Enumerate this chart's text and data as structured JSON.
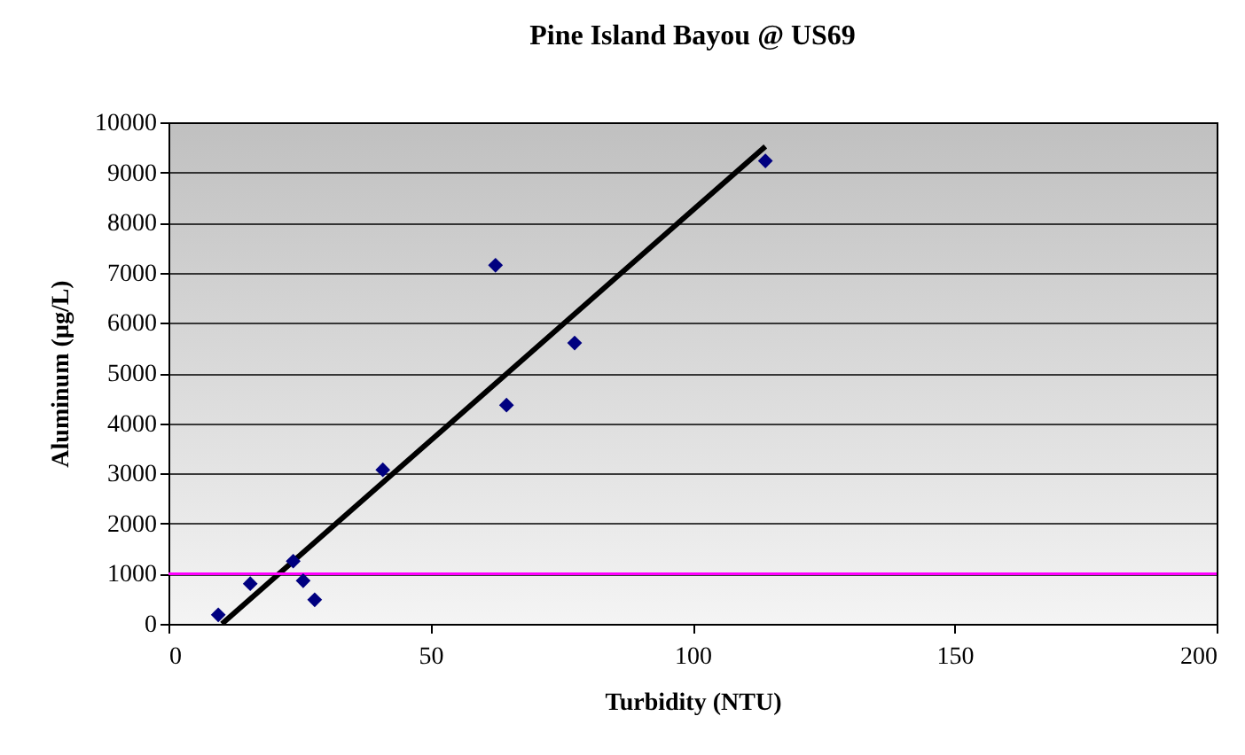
{
  "chart_data": {
    "type": "scatter",
    "title": "Pine Island Bayou @ US69",
    "xlabel": "Turbidity (NTU)",
    "ylabel": "Aluminum (µg/L)",
    "xlim": [
      0,
      200
    ],
    "xticks": [
      0,
      50,
      100,
      150,
      200
    ],
    "ylim": [
      0,
      10000
    ],
    "yticks": [
      0,
      1000,
      2000,
      3000,
      4000,
      5000,
      6000,
      7000,
      8000,
      9000,
      10000
    ],
    "grid": "y",
    "series": [
      {
        "color": "#000080",
        "marker": "diamond",
        "x": [
          9.5,
          15.6,
          23.8,
          25.7,
          27.9,
          40.9,
          62.4,
          64.5,
          77.5,
          113.9
        ],
        "values": [
          180,
          800,
          1250,
          860,
          480,
          3070,
          7150,
          4360,
          5600,
          9230
        ]
      },
      {
        "type": "line",
        "color": "#000000",
        "x": [
          10.2,
          113.9
        ],
        "values": [
          0,
          9520
        ]
      }
    ],
    "ref_lines": [
      {
        "axis": "y",
        "value": 1000,
        "color": "#ff00ff"
      }
    ]
  }
}
